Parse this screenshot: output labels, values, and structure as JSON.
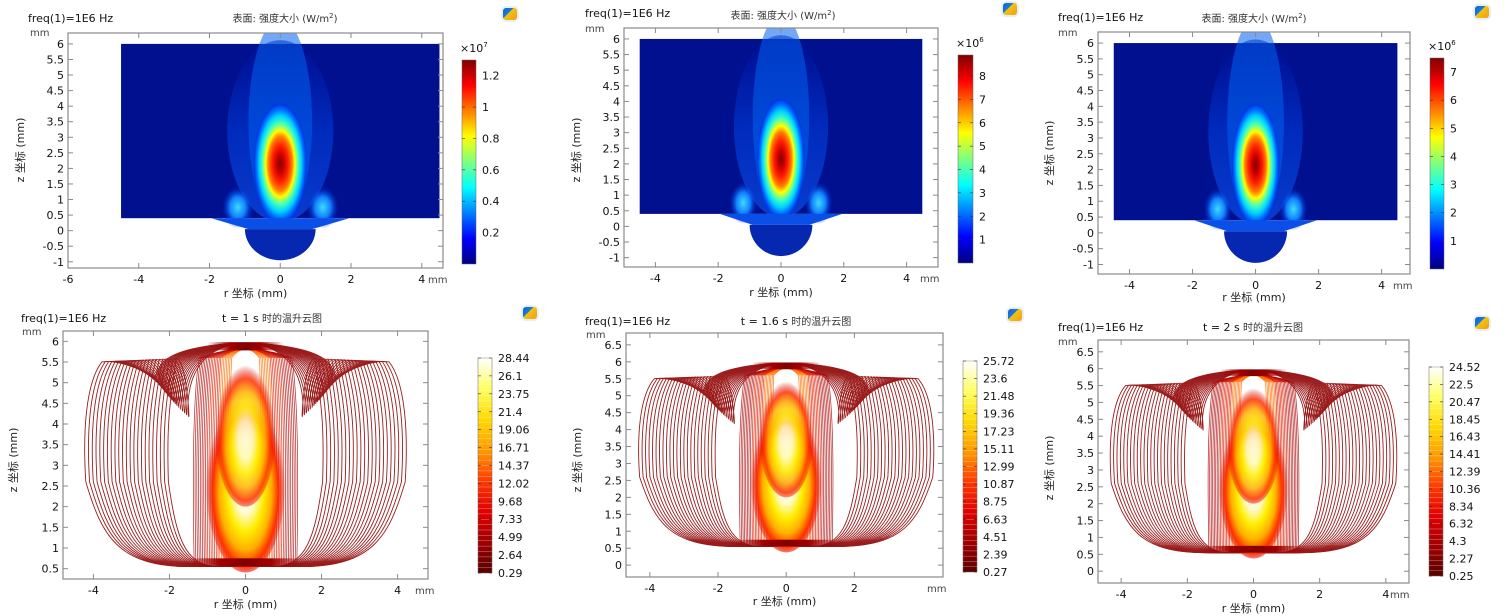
{
  "colors": {
    "frame": "#8a8a8a",
    "contour_line": "#9b1c1c",
    "jet": [
      "#00007f",
      "#0000ff",
      "#007fff",
      "#00ffff",
      "#7fff7f",
      "#ffff00",
      "#ff7f00",
      "#ff0000",
      "#7f0000"
    ],
    "heat": [
      "#5a0000",
      "#a00000",
      "#e00000",
      "#ff3a00",
      "#ff9a00",
      "#ffd800",
      "#ffff60",
      "#ffffff"
    ]
  },
  "icons": {
    "app": "comsol-app-icon"
  },
  "chart_data": [
    {
      "type": "heatmap",
      "id": "intensity-1",
      "freq_label": "freq(1)=1E6 Hz",
      "title_prefix": "表面: 强度大小 (W/m",
      "title_sup": "2",
      "title_suffix": ")",
      "xlabel": "r 坐标 (mm)",
      "ylabel": "z 坐标 (mm)",
      "x_unit": "mm",
      "y_unit": "mm",
      "xlim": [
        -6,
        4.6
      ],
      "ylim": [
        -1.2,
        6.35
      ],
      "xticks": [
        "-6",
        "-4",
        "-2",
        "0",
        "2",
        "4"
      ],
      "xtick_values": [
        -6,
        -4,
        -2,
        0,
        2,
        4
      ],
      "yticks": [
        "-1",
        "-0.5",
        "0",
        "0.5",
        "1",
        "1.5",
        "2",
        "2.5",
        "3",
        "3.5",
        "4",
        "4.5",
        "5",
        "5.5",
        "6"
      ],
      "ytick_values": [
        -1,
        -0.5,
        0,
        0.5,
        1,
        1.5,
        2,
        2.5,
        3,
        3.5,
        4,
        4.5,
        5,
        5.5,
        6
      ],
      "colorbar": {
        "multiplier_base": "×10",
        "multiplier_exp": "7",
        "ticks": [
          "1.2",
          "1",
          "0.8",
          "0.6",
          "0.4",
          "0.2"
        ],
        "tick_values": [
          1.2,
          1.0,
          0.8,
          0.6,
          0.4,
          0.2
        ],
        "range": [
          0.0,
          1.3
        ]
      },
      "peak": {
        "r": 0,
        "z": 1.85,
        "value": 1.3
      }
    },
    {
      "type": "heatmap",
      "id": "intensity-2",
      "freq_label": "freq(1)=1E6 Hz",
      "title_prefix": "表面: 强度大小 (W/m",
      "title_sup": "2",
      "title_suffix": ")",
      "xlabel": "r 坐标 (mm)",
      "ylabel": "z 坐标 (mm)",
      "x_unit": "mm",
      "y_unit": "mm",
      "xlim": [
        -5,
        5
      ],
      "ylim": [
        -1.3,
        6.35
      ],
      "xticks": [
        "-4",
        "-2",
        "0",
        "2",
        "4"
      ],
      "xtick_values": [
        -4,
        -2,
        0,
        2,
        4
      ],
      "yticks": [
        "-1",
        "-0.5",
        "0",
        "0.5",
        "1",
        "1.5",
        "2",
        "2.5",
        "3",
        "3.5",
        "4",
        "4.5",
        "5",
        "5.5",
        "6"
      ],
      "ytick_values": [
        -1,
        -0.5,
        0,
        0.5,
        1,
        1.5,
        2,
        2.5,
        3,
        3.5,
        4,
        4.5,
        5,
        5.5,
        6
      ],
      "colorbar": {
        "multiplier_base": "×10",
        "multiplier_exp": "6",
        "ticks": [
          "8",
          "7",
          "6",
          "5",
          "4",
          "3",
          "2",
          "1"
        ],
        "tick_values": [
          8,
          7,
          6,
          5,
          4,
          3,
          2,
          1
        ],
        "range": [
          0.0,
          8.9
        ]
      },
      "peak": {
        "r": 0,
        "z": 1.85,
        "value": 8.9
      }
    },
    {
      "type": "heatmap",
      "id": "intensity-3",
      "freq_label": "freq(1)=1E6 Hz",
      "title_prefix": "表面: 强度大小 (W/m",
      "title_sup": "2",
      "title_suffix": ")",
      "xlabel": "r 坐标 (mm)",
      "ylabel": "z 坐标 (mm)",
      "x_unit": "mm",
      "y_unit": "mm",
      "xlim": [
        -5,
        4.9
      ],
      "ylim": [
        -1.3,
        6.35
      ],
      "xticks": [
        "-4",
        "-2",
        "0",
        "2",
        "4"
      ],
      "xtick_values": [
        -4,
        -2,
        0,
        2,
        4
      ],
      "yticks": [
        "-1",
        "-0.5",
        "0",
        "0.5",
        "1",
        "1.5",
        "2",
        "2.5",
        "3",
        "3.5",
        "4",
        "4.5",
        "5",
        "5.5",
        "6"
      ],
      "ytick_values": [
        -1,
        -0.5,
        0,
        0.5,
        1,
        1.5,
        2,
        2.5,
        3,
        3.5,
        4,
        4.5,
        5,
        5.5,
        6
      ],
      "colorbar": {
        "multiplier_base": "×10",
        "multiplier_exp": "6",
        "ticks": [
          "7",
          "6",
          "5",
          "4",
          "3",
          "2",
          "1"
        ],
        "tick_values": [
          7,
          6,
          5,
          4,
          3,
          2,
          1
        ],
        "range": [
          0.0,
          7.5
        ]
      },
      "peak": {
        "r": 0,
        "z": 1.85,
        "value": 7.5
      }
    },
    {
      "type": "heatmap",
      "subtype": "contour",
      "id": "temperature-1",
      "freq_label": "freq(1)=1E6 Hz",
      "title_bold": "t = 1 s",
      "title_rest": " 时的温升云图",
      "xlabel": "r 坐标 (mm)",
      "ylabel": "z 坐标 (mm)",
      "x_unit": "mm",
      "y_unit": "mm",
      "xlim": [
        -4.8,
        4.8
      ],
      "ylim": [
        0.25,
        6.25
      ],
      "xticks": [
        "-4",
        "-2",
        "0",
        "2",
        "4"
      ],
      "xtick_values": [
        -4,
        -2,
        0,
        2,
        4
      ],
      "yticks": [
        "0.5",
        "1",
        "1.5",
        "2",
        "2.5",
        "3",
        "3.5",
        "4",
        "4.5",
        "5",
        "5.5",
        "6"
      ],
      "ytick_values": [
        0.5,
        1,
        1.5,
        2,
        2.5,
        3,
        3.5,
        4,
        4.5,
        5,
        5.5,
        6
      ],
      "colorbar": {
        "ticks": [
          "28.44",
          "26.1",
          "23.75",
          "21.4",
          "19.06",
          "16.71",
          "14.37",
          "12.02",
          "9.68",
          "7.33",
          "4.99",
          "2.64",
          "0.29"
        ],
        "tick_values": [
          28.44,
          26.1,
          23.75,
          21.4,
          19.06,
          16.71,
          14.37,
          12.02,
          9.68,
          7.33,
          4.99,
          2.64,
          0.29
        ],
        "range": [
          0.29,
          28.44
        ]
      },
      "outer_extent_r": 4.2,
      "levels": 40
    },
    {
      "type": "heatmap",
      "subtype": "contour",
      "id": "temperature-2",
      "freq_label": "freq(1)=1E6 Hz",
      "title_bold": "t = 1.6 s",
      "title_rest": " 时的温升云图",
      "xlabel": "r 坐标 (mm)",
      "ylabel": "z 坐标 (mm)",
      "x_unit": "mm",
      "y_unit": "mm",
      "xlim": [
        -4.7,
        4.6
      ],
      "ylim": [
        -0.35,
        6.85
      ],
      "xticks": [
        "-4",
        "-2",
        "0",
        "2"
      ],
      "xtick_values": [
        -4,
        -2,
        0,
        2
      ],
      "yticks": [
        "0",
        "0.5",
        "1",
        "1.5",
        "2",
        "2.5",
        "3",
        "3.5",
        "4",
        "4.5",
        "5",
        "5.5",
        "6",
        "6.5"
      ],
      "ytick_values": [
        0,
        0.5,
        1,
        1.5,
        2,
        2.5,
        3,
        3.5,
        4,
        4.5,
        5,
        5.5,
        6,
        6.5
      ],
      "colorbar": {
        "ticks": [
          "25.72",
          "23.6",
          "21.48",
          "19.36",
          "17.23",
          "15.11",
          "12.99",
          "10.87",
          "8.75",
          "6.63",
          "4.51",
          "2.39",
          "0.27"
        ],
        "tick_values": [
          25.72,
          23.6,
          21.48,
          19.36,
          17.23,
          15.11,
          12.99,
          10.87,
          8.75,
          6.63,
          4.51,
          2.39,
          0.27
        ],
        "range": [
          0.27,
          25.72
        ]
      },
      "outer_extent_r": 4.3,
      "levels": 40
    },
    {
      "type": "heatmap",
      "subtype": "contour",
      "id": "temperature-3",
      "freq_label": "freq(1)=1E6 Hz",
      "title_bold": "t = 2 s",
      "title_rest": " 时的温升云图",
      "xlabel": "r 坐标 (mm)",
      "ylabel": "z 坐标 (mm)",
      "x_unit": "mm",
      "y_unit": "mm",
      "xlim": [
        -4.7,
        4.7
      ],
      "ylim": [
        -0.35,
        6.85
      ],
      "xticks": [
        "-4",
        "-2",
        "0",
        "2",
        "4"
      ],
      "xtick_values": [
        -4,
        -2,
        0,
        2,
        4
      ],
      "yticks": [
        "0",
        "0.5",
        "1",
        "1.5",
        "2",
        "2.5",
        "3",
        "3.5",
        "4",
        "4.5",
        "5",
        "5.5",
        "6",
        "6.5"
      ],
      "ytick_values": [
        0,
        0.5,
        1,
        1.5,
        2,
        2.5,
        3,
        3.5,
        4,
        4.5,
        5,
        5.5,
        6,
        6.5
      ],
      "colorbar": {
        "ticks": [
          "24.52",
          "22.5",
          "20.47",
          "18.45",
          "16.43",
          "14.41",
          "12.39",
          "10.36",
          "8.34",
          "6.32",
          "4.3",
          "2.27",
          "0.25"
        ],
        "tick_values": [
          24.52,
          22.5,
          20.47,
          18.45,
          16.43,
          14.41,
          12.39,
          10.36,
          8.34,
          6.32,
          4.3,
          2.27,
          0.25
        ],
        "range": [
          0.25,
          24.52
        ]
      },
      "outer_extent_r": 4.3,
      "levels": 40
    }
  ]
}
